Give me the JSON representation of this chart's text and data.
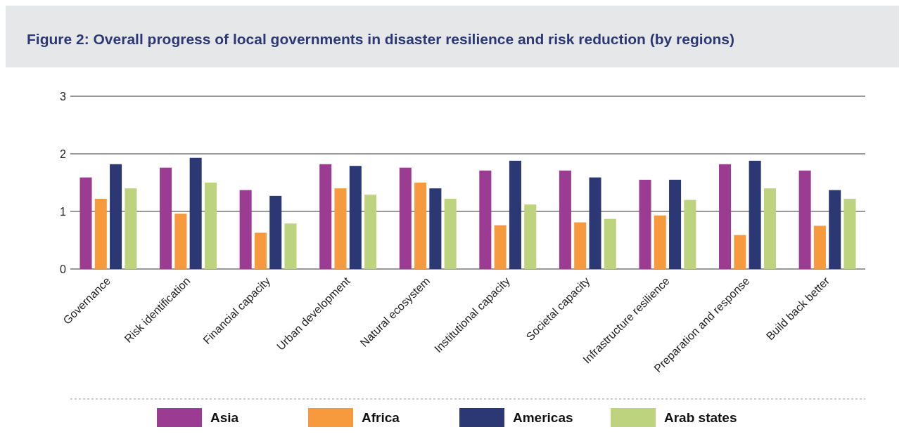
{
  "chart_data": {
    "type": "bar",
    "title": "Figure 2: Overall progress of local governments in disaster resilience and risk reduction (by regions)",
    "categories": [
      "Governance",
      "Risk identification",
      "Financial capacity",
      "Urban development",
      "Natural ecosystem",
      "Institutional capacity",
      "Societal capacity",
      "Infrastructure resilience",
      "Preparation and response",
      "Build back better"
    ],
    "series": [
      {
        "name": "Asia",
        "color": "#9b3b92",
        "values": [
          1.59,
          1.76,
          1.37,
          1.82,
          1.76,
          1.71,
          1.71,
          1.55,
          1.82,
          1.71
        ]
      },
      {
        "name": "Africa",
        "color": "#f79a3e",
        "values": [
          1.22,
          0.96,
          0.63,
          1.4,
          1.5,
          0.76,
          0.81,
          0.93,
          0.59,
          0.75
        ]
      },
      {
        "name": "Americas",
        "color": "#2b3874",
        "values": [
          1.82,
          1.93,
          1.27,
          1.79,
          1.4,
          1.88,
          1.59,
          1.55,
          1.88,
          1.37
        ]
      },
      {
        "name": "Arab states",
        "color": "#bdd37e",
        "values": [
          1.4,
          1.5,
          0.79,
          1.29,
          1.22,
          1.12,
          0.87,
          1.2,
          1.4,
          1.22
        ]
      }
    ],
    "ylim": [
      0,
      3
    ],
    "yticks": [
      0,
      1,
      2,
      3
    ],
    "grid": "y",
    "legend": "bottom"
  }
}
